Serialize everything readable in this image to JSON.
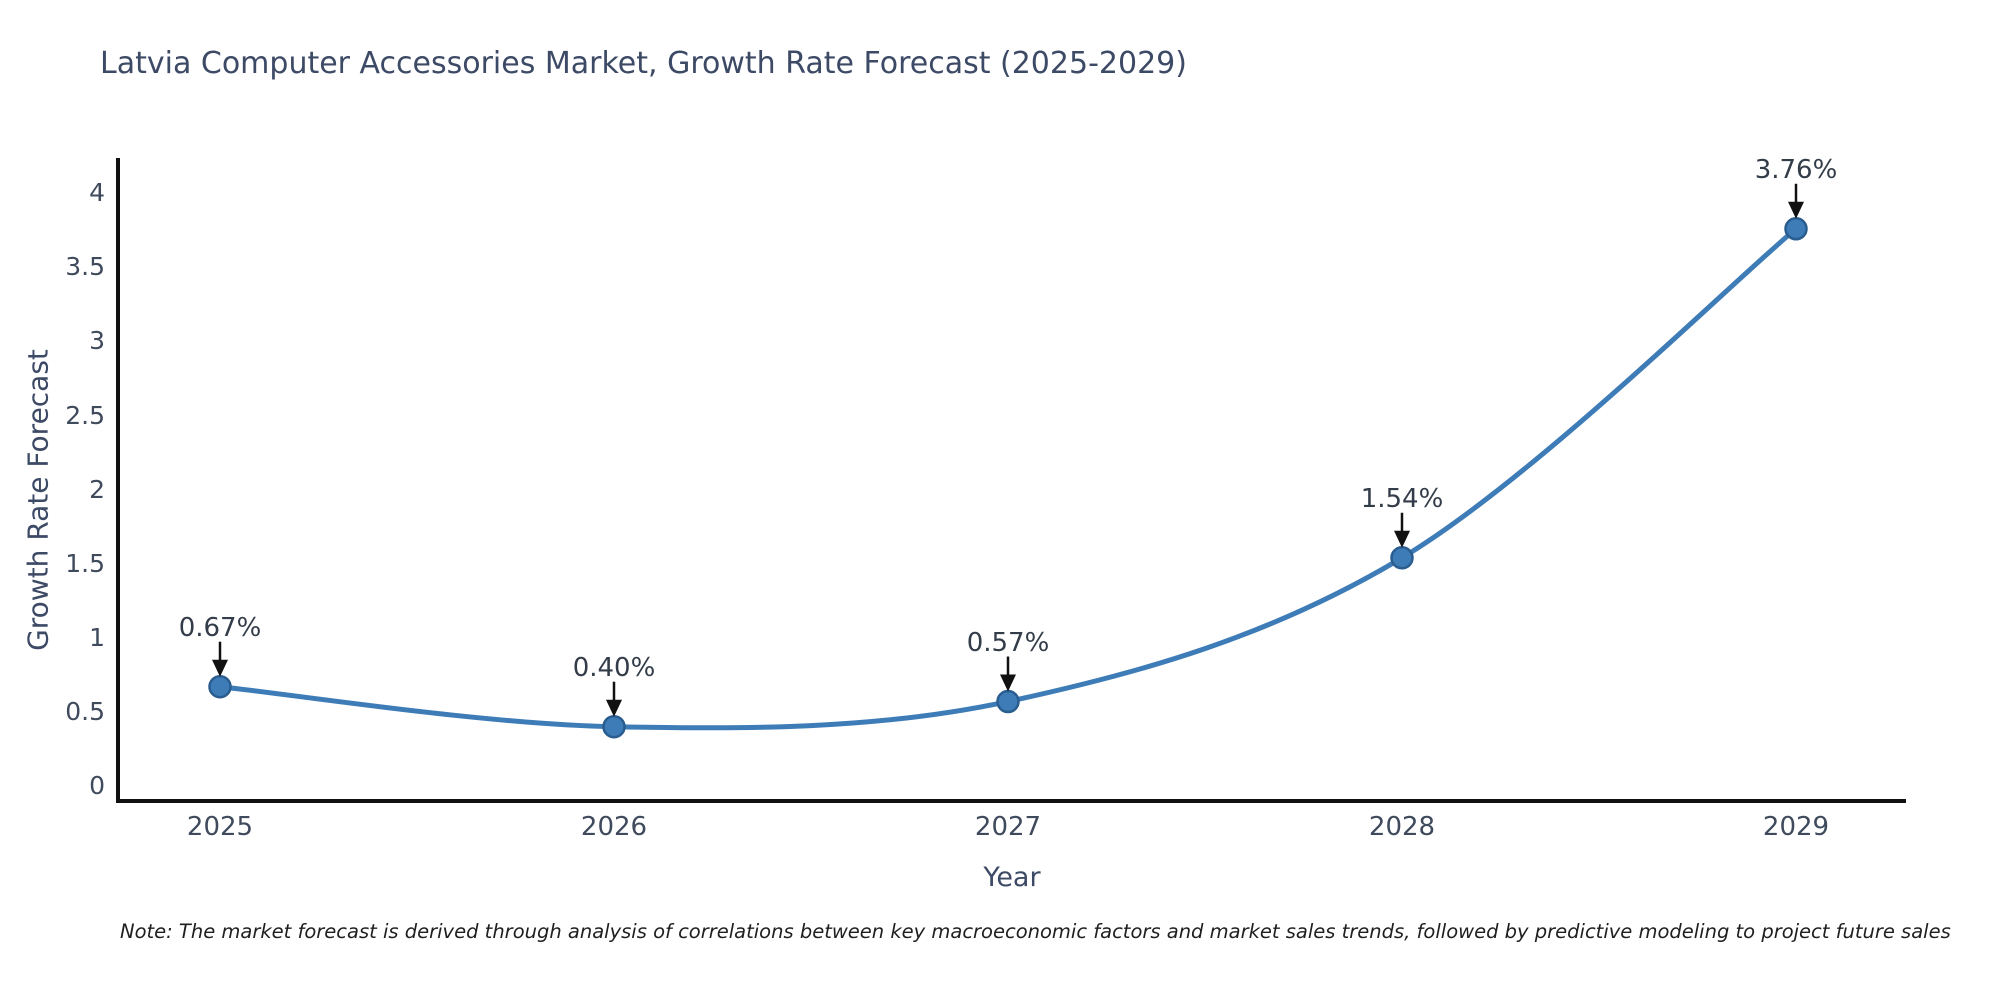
{
  "title": "Latvia Computer Accessories Market, Growth Rate Forecast (2025-2029)",
  "note": "Note: The market forecast is derived through analysis of correlations between key macroeconomic factors and market sales trends, followed by predictive modeling to project future sales",
  "chart_data": {
    "type": "line",
    "title": "Latvia Computer Accessories Market, Growth Rate Forecast (2025-2029)",
    "x": [
      2025,
      2026,
      2027,
      2028,
      2029
    ],
    "categories": [
      "2025",
      "2026",
      "2027",
      "2028",
      "2029"
    ],
    "series": [
      {
        "name": "Growth Rate Forecast",
        "values": [
          0.67,
          0.4,
          0.57,
          1.54,
          3.76
        ]
      }
    ],
    "point_labels": [
      "0.67%",
      "0.40%",
      "0.57%",
      "1.54%",
      "3.76%"
    ],
    "xlabel": "Year",
    "ylabel": "Growth Rate Forecast",
    "ylim": [
      0,
      4.3
    ],
    "yticks": [
      0,
      0.5,
      1,
      1.5,
      2,
      2.5,
      3,
      3.5,
      4
    ],
    "grid": false,
    "legend_position": "none",
    "line_color": "#3e7cb7",
    "marker_color": "#3e7cb7",
    "marker_edge_color": "#2a5d8f",
    "arrow_color": "#111111",
    "axis_color": "#111111"
  },
  "colors": {
    "background": "#ffffff",
    "title": "#3d4a66",
    "tick": "#3f4a5c",
    "annotation": "#333c49",
    "note": "#1f1f1f"
  }
}
